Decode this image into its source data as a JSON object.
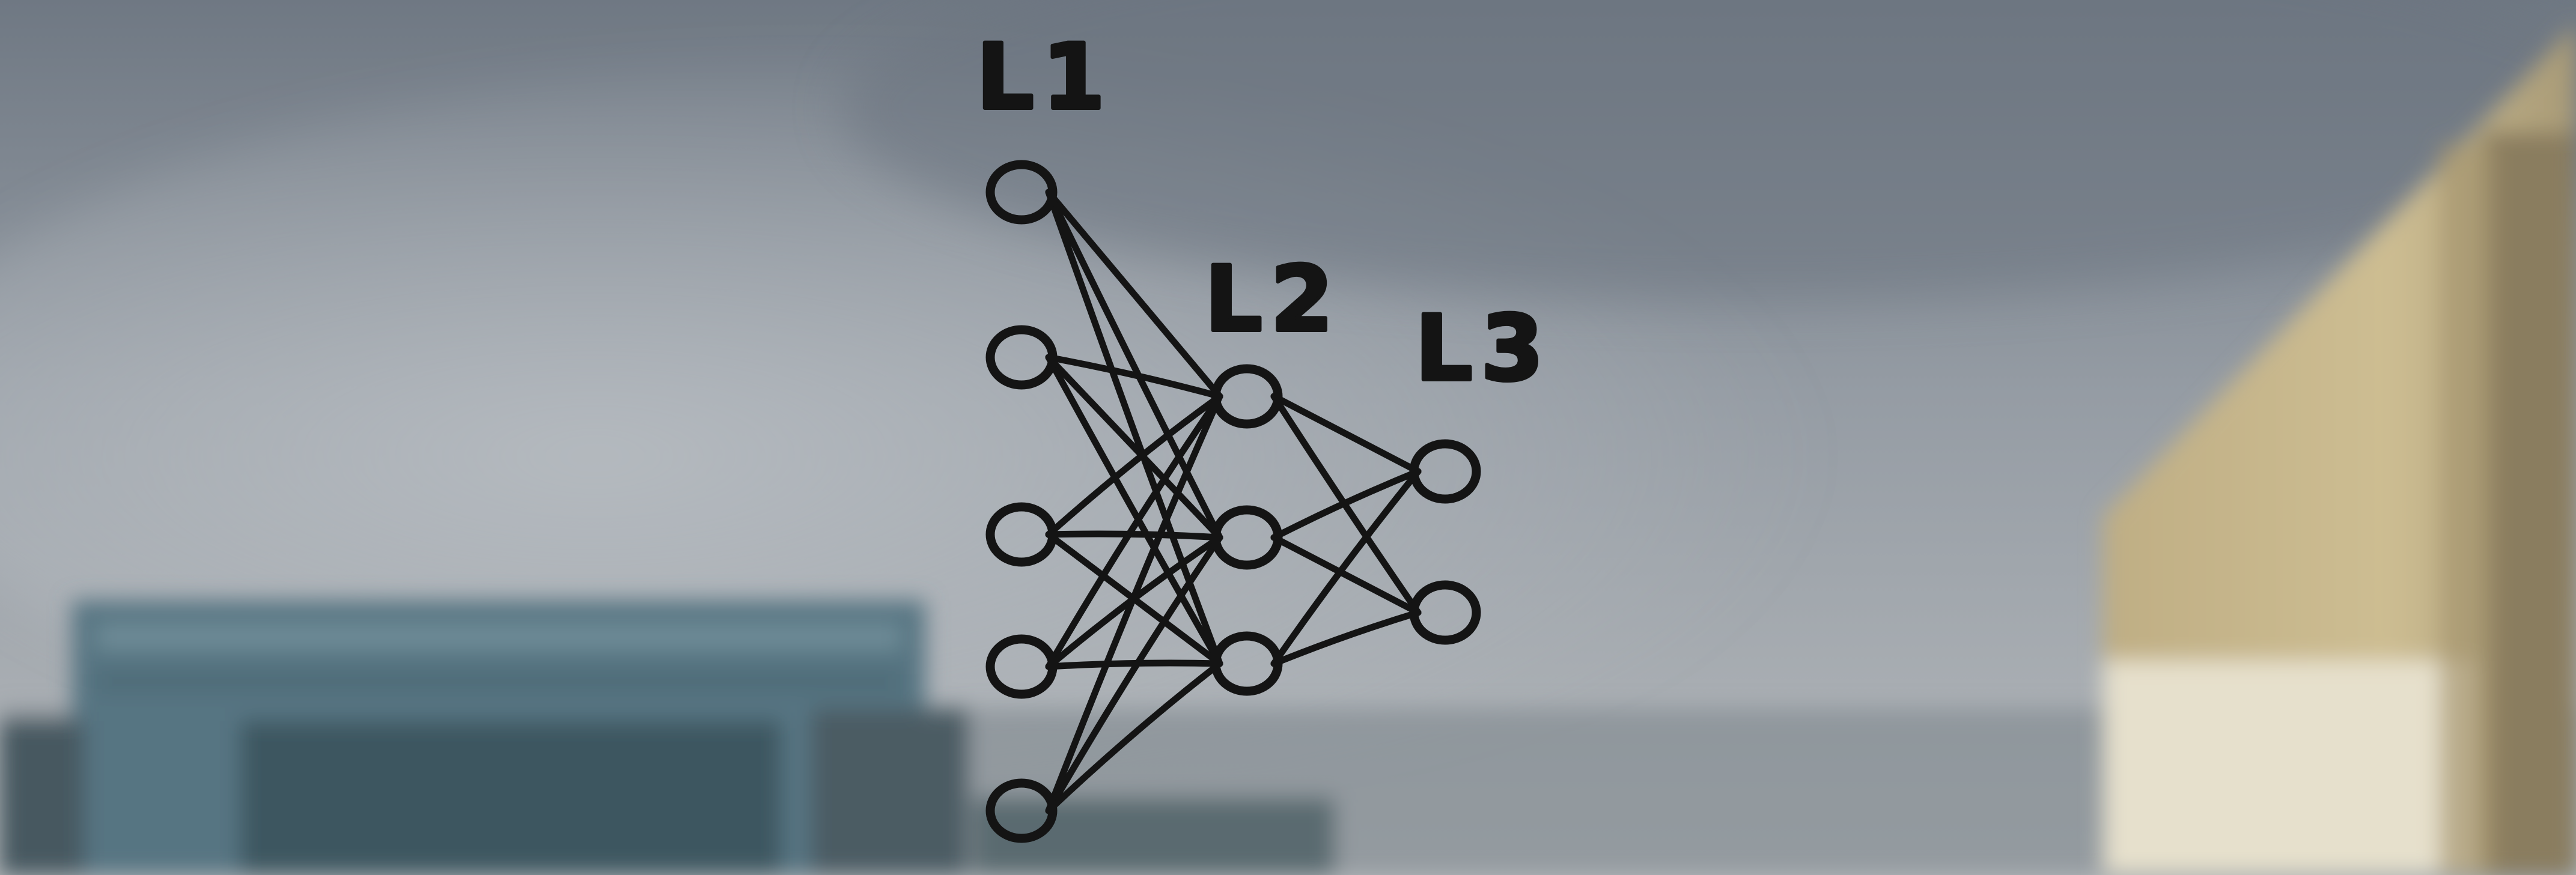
{
  "scene": {
    "description_labels": {
      "layer1": "L1",
      "layer2": "L2",
      "layer3": "L3"
    },
    "network": {
      "layers": [
        {
          "name": "L1",
          "nodes": 5
        },
        {
          "name": "L2",
          "nodes": 3
        },
        {
          "name": "L3",
          "nodes": 2
        }
      ],
      "connectivity": "fully-connected"
    },
    "colors": {
      "marker_ink": "#141414",
      "sky_top": "#7c8590",
      "sky_bottom": "#aab0b6",
      "building_left": "#5f7a86",
      "building_right_wall": "#c8b88f",
      "building_right_light": "#e8e2cf"
    }
  }
}
